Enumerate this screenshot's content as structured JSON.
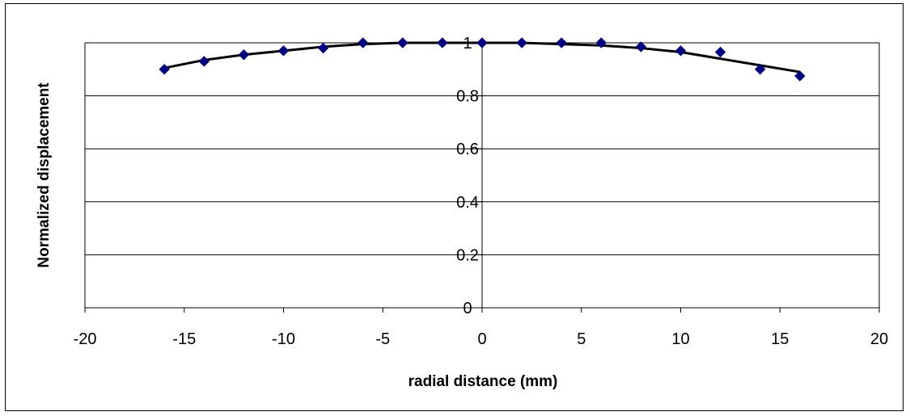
{
  "chart_data": {
    "type": "scatter",
    "title": "",
    "xlabel": "radial distance (mm)",
    "ylabel": "Normalized displacement",
    "xlim": [
      -20,
      20
    ],
    "ylim": [
      0,
      1
    ],
    "xticks": [
      "-20",
      "-15",
      "-10",
      "-5",
      "0",
      "5",
      "10",
      "15",
      "20"
    ],
    "yticks": [
      "0",
      "0.2",
      "0.4",
      "0.6",
      "0.8",
      "1"
    ],
    "grid": "horizontal",
    "legend": "none",
    "series": [
      {
        "kind": "points",
        "marker": "diamond",
        "color": "#000080",
        "x": [
          -16,
          -14,
          -12,
          -10,
          -8,
          -6,
          -4,
          -2,
          0,
          2,
          4,
          6,
          8,
          10,
          12,
          14,
          16
        ],
        "y": [
          0.9,
          0.93,
          0.955,
          0.97,
          0.98,
          1.0,
          1.0,
          1.0,
          1.0,
          1.0,
          1.0,
          1.0,
          0.985,
          0.97,
          0.965,
          0.9,
          0.875
        ]
      },
      {
        "kind": "line",
        "color": "#000000",
        "x": [
          -16,
          -14,
          -12,
          -10,
          -8,
          -6,
          -4,
          -2,
          0,
          2,
          4,
          6,
          8,
          10,
          12,
          14,
          16
        ],
        "y": [
          0.905,
          0.935,
          0.955,
          0.97,
          0.985,
          0.995,
          1.0,
          1.0,
          1.0,
          1.0,
          0.995,
          0.99,
          0.98,
          0.965,
          0.94,
          0.915,
          0.89
        ]
      }
    ]
  }
}
